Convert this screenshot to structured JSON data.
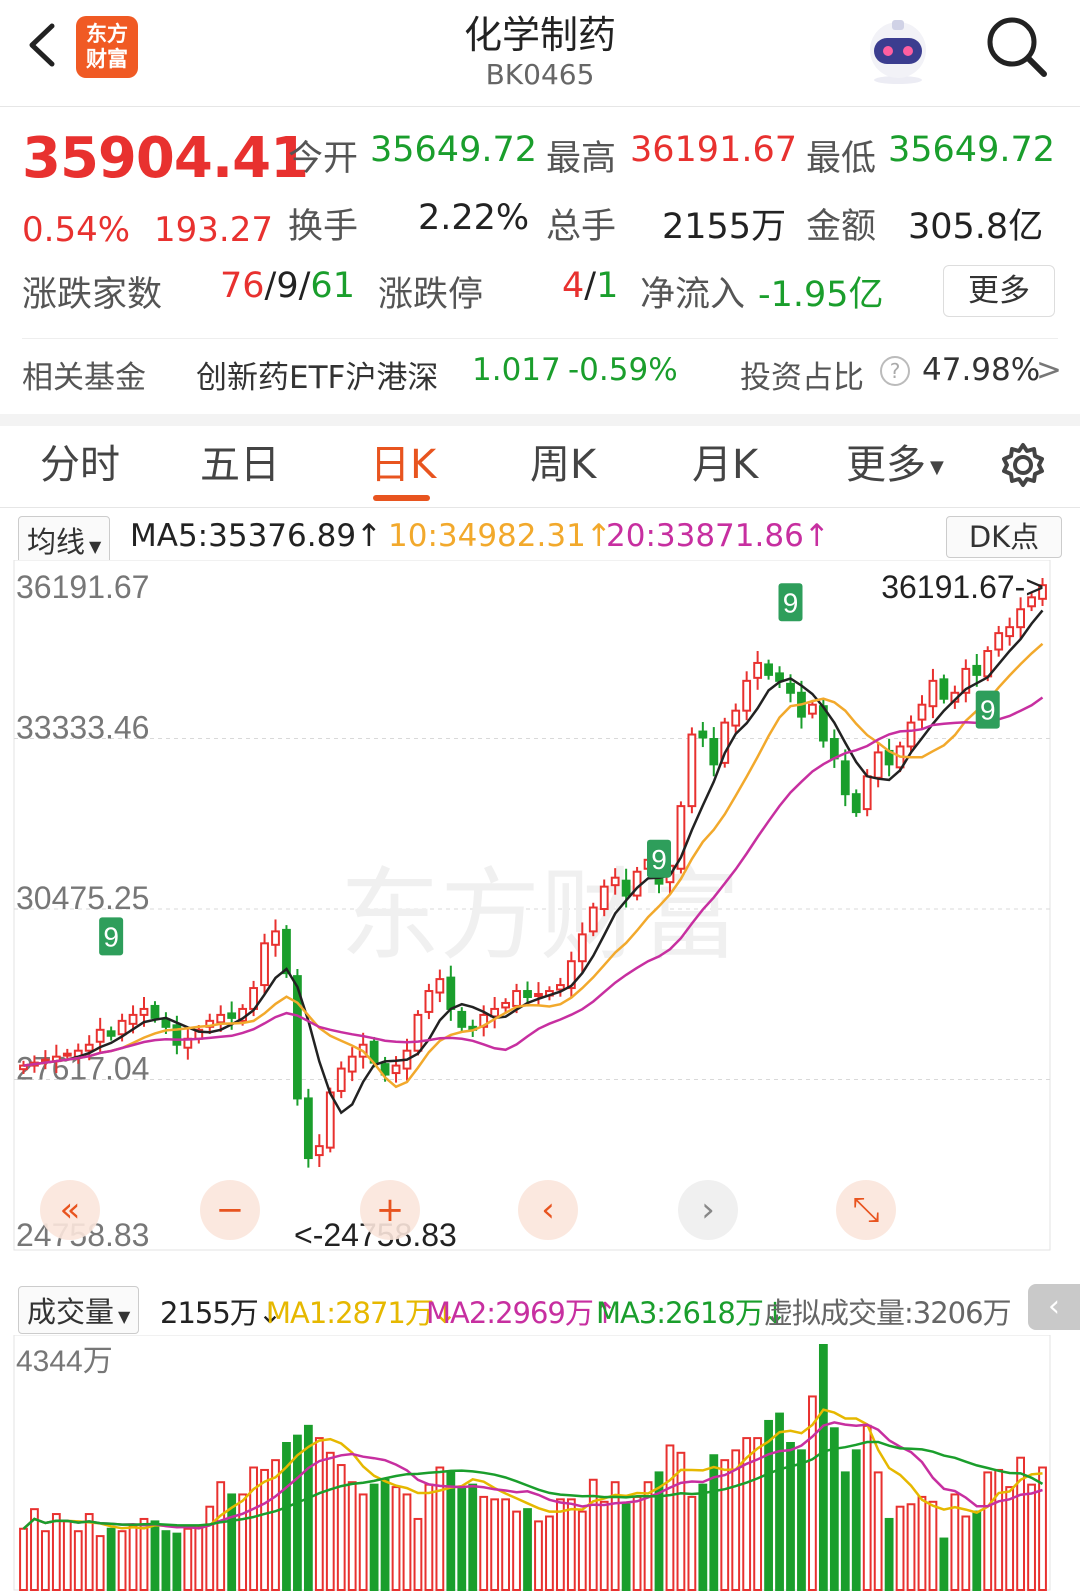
{
  "header": {
    "title": "化学制药",
    "code": "BK0465",
    "logo": [
      "东方",
      "财富"
    ],
    "icons": [
      "back-icon",
      "robot-icon",
      "search-icon"
    ]
  },
  "quote": {
    "price": "35904.41",
    "change_pct": "0.54%",
    "change": "193.27",
    "open_label": "今开",
    "open": "35649.72",
    "high_label": "最高",
    "high": "36191.67",
    "low_label": "最低",
    "low": "35649.72",
    "turnover_label": "换手",
    "turnover": "2.22%",
    "volume_label": "总手",
    "volume": "2155万",
    "amount_label": "金额",
    "amount": "305.8亿",
    "adv_label": "涨跌家数",
    "adv_up": "76",
    "adv_flat": "9",
    "adv_down": "61",
    "limit_label": "涨跌停",
    "limit_up": "4",
    "limit_down": "1",
    "netflow_label": "净流入",
    "netflow": "-1.95亿",
    "more_label": "更多"
  },
  "fund": {
    "label": "相关基金",
    "name": "创新药ETF沪港深",
    "price": "1.017",
    "change": "-0.59%",
    "ratio_label": "投资占比",
    "ratio": "47.98%",
    "arrow": ">"
  },
  "tabs": [
    {
      "label": "分时"
    },
    {
      "label": "五日"
    },
    {
      "label": "日K"
    },
    {
      "label": "周K"
    },
    {
      "label": "月K"
    },
    {
      "label": "更多"
    }
  ],
  "active_tab": "日K",
  "ma": {
    "selector": "均线",
    "ma5": "MA5:35376.89",
    "ma10": "10:34982.31",
    "ma20": "20:33871.86",
    "dk": "DK点"
  },
  "vol": {
    "selector": "成交量",
    "value": "2155万",
    "ma1": "MA1:2871万",
    "ma2": "MA2:2969万",
    "ma3": "MA3:2618万",
    "virtual": "虚拟成交量:3206万",
    "axis_max": "4344万"
  },
  "colors": {
    "up": "#e8312f",
    "down": "#1a9e2c",
    "ma5": "#222222",
    "ma10": "#f2a92c",
    "ma20": "#c72fa0"
  },
  "chart_data": {
    "type": "candlestick",
    "y_ticks": [
      "36191.67",
      "33333.46",
      "30475.25",
      "27617.04",
      "24758.83"
    ],
    "ylim": [
      24758.83,
      36191.67
    ],
    "max_label": "36191.67->",
    "min_label": "<-24758.83",
    "close": [
      27850,
      27900,
      27950,
      28000,
      28050,
      28100,
      28200,
      28450,
      28350,
      28600,
      28700,
      28800,
      28650,
      28500,
      28200,
      28300,
      28450,
      28600,
      28700,
      28650,
      28800,
      29150,
      29900,
      30100,
      29400,
      27300,
      26300,
      26500,
      27400,
      27800,
      28000,
      28200,
      27900,
      27700,
      27850,
      28100,
      28700,
      29100,
      29300,
      28800,
      28500,
      28450,
      28700,
      28800,
      28900,
      29100,
      29000,
      29050,
      29100,
      29200,
      29600,
      30050,
      30500,
      30850,
      31000,
      30700,
      31100,
      31300,
      30900,
      31200,
      32200,
      33400,
      33350,
      32900,
      33600,
      33800,
      34300,
      34600,
      34400,
      34300,
      34100,
      33700,
      33900,
      33300,
      33000,
      32400,
      32100,
      32700,
      33100,
      32900,
      33200,
      33600,
      33900,
      34300,
      34000,
      34100,
      34500,
      34400,
      34800,
      35100,
      35200,
      35500,
      35700,
      35904
    ],
    "volume_ratio": [
      0.25,
      0.33,
      0.24,
      0.31,
      0.28,
      0.24,
      0.31,
      0.22,
      0.25,
      0.24,
      0.26,
      0.29,
      0.28,
      0.24,
      0.23,
      0.25,
      0.26,
      0.34,
      0.44,
      0.39,
      0.39,
      0.5,
      0.49,
      0.53,
      0.6,
      0.63,
      0.67,
      0.62,
      0.56,
      0.51,
      0.44,
      0.39,
      0.43,
      0.45,
      0.42,
      0.39,
      0.29,
      0.43,
      0.5,
      0.48,
      0.42,
      0.43,
      0.38,
      0.37,
      0.37,
      0.32,
      0.33,
      0.28,
      0.3,
      0.37,
      0.37,
      0.32,
      0.45,
      0.36,
      0.44,
      0.35,
      0.38,
      0.44,
      0.48,
      0.59,
      0.56,
      0.38,
      0.43,
      0.55,
      0.53,
      0.57,
      0.62,
      0.62,
      0.69,
      0.72,
      0.6,
      0.57,
      0.79,
      1.0,
      0.66,
      0.48,
      0.57,
      0.67,
      0.48,
      0.29,
      0.34,
      0.35,
      0.38,
      0.36,
      0.21,
      0.39,
      0.3,
      0.32,
      0.48,
      0.49,
      0.42,
      0.54,
      0.43,
      0.5
    ],
    "signal_nine_labels": [
      "9",
      "9",
      "9",
      "9"
    ]
  }
}
